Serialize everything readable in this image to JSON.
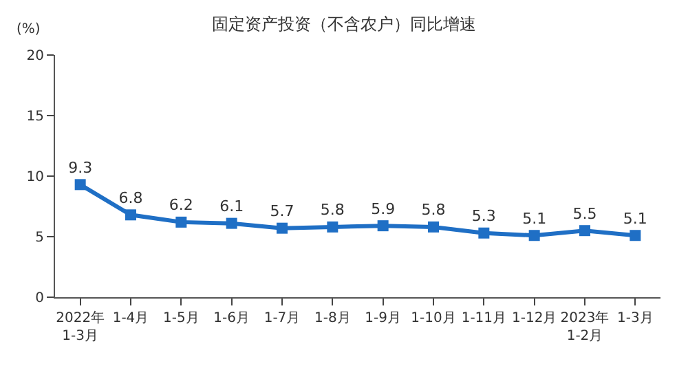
{
  "chart_data": {
    "type": "line",
    "title": "固定资产投资（不含农户）同比增速",
    "ylabel": "(%)",
    "categories": [
      "2022年\n1-3月",
      "1-4月",
      "1-5月",
      "1-6月",
      "1-7月",
      "1-8月",
      "1-9月",
      "1-10月",
      "1-11月",
      "1-12月",
      "2023年\n1-2月",
      "1-3月"
    ],
    "series": [
      {
        "color": "#1f6fc5",
        "values": [
          9.3,
          6.8,
          6.2,
          6.1,
          5.7,
          5.8,
          5.9,
          5.8,
          5.3,
          5.1,
          5.5,
          5.1
        ]
      }
    ],
    "ylim": [
      0,
      20
    ],
    "yticks": [
      0,
      5,
      10,
      15,
      20
    ],
    "marker": "square",
    "line_style": "solid",
    "data_labels": true
  }
}
